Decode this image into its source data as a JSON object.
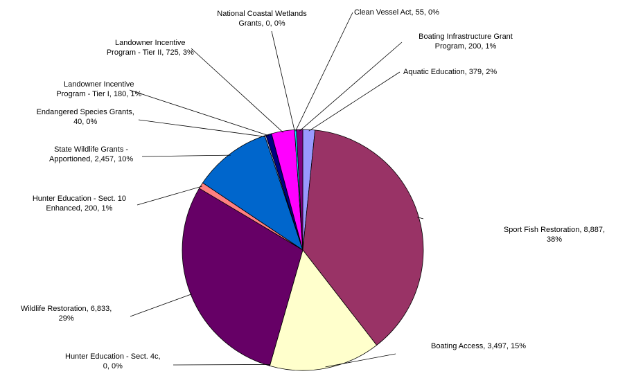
{
  "chart_data": {
    "type": "pie",
    "title": "",
    "slices": [
      {
        "label_lines": [
          "Aquatic Education, 379, 2%"
        ],
        "value": 379,
        "percent": "2%",
        "color": "#9999FF"
      },
      {
        "label_lines": [
          "Sport Fish Restoration, 8,887,",
          "38%"
        ],
        "value": 8887,
        "percent": "38%",
        "color": "#993366"
      },
      {
        "label_lines": [
          "Boating Access, 3,497, 15%"
        ],
        "value": 3497,
        "percent": "15%",
        "color": "#FFFFCC"
      },
      {
        "label_lines": [
          "Hunter Education  - Sect. 4c,",
          "0, 0%"
        ],
        "value": 0,
        "percent": "0%",
        "color": "#CCFFFF"
      },
      {
        "label_lines": [
          "Wildlife Restoration, 6,833,",
          "29%"
        ],
        "value": 6833,
        "percent": "29%",
        "color": "#660066"
      },
      {
        "label_lines": [
          "Hunter Education - Sect. 10",
          "Enhanced, 200, 1%"
        ],
        "value": 200,
        "percent": "1%",
        "color": "#FF8080"
      },
      {
        "label_lines": [
          "State Wildlife Grants -",
          "Apportioned, 2,457, 10%"
        ],
        "value": 2457,
        "percent": "10%",
        "color": "#0066CC"
      },
      {
        "label_lines": [
          "Endangered Species Grants,",
          "40, 0%"
        ],
        "value": 40,
        "percent": "0%",
        "color": "#CCCCFF"
      },
      {
        "label_lines": [
          "Landowner Incentive",
          "Program - Tier I, 180, 1%"
        ],
        "value": 180,
        "percent": "1%",
        "color": "#000080"
      },
      {
        "label_lines": [
          "Landowner Incentive",
          "Program -  Tier II, 725, 3%"
        ],
        "value": 725,
        "percent": "3%",
        "color": "#FF00FF"
      },
      {
        "label_lines": [
          "National Coastal Wetlands",
          "Grants, 0, 0%"
        ],
        "value": 0,
        "percent": "0%",
        "color": "#FFFF00"
      },
      {
        "label_lines": [
          "Clean Vessel Act, 55, 0%"
        ],
        "value": 55,
        "percent": "0%",
        "color": "#00FFFF"
      },
      {
        "label_lines": [
          "Boating Infrastructure Grant",
          "Program, 200, 1%"
        ],
        "value": 200,
        "percent": "1%",
        "color": "#800080"
      }
    ]
  }
}
